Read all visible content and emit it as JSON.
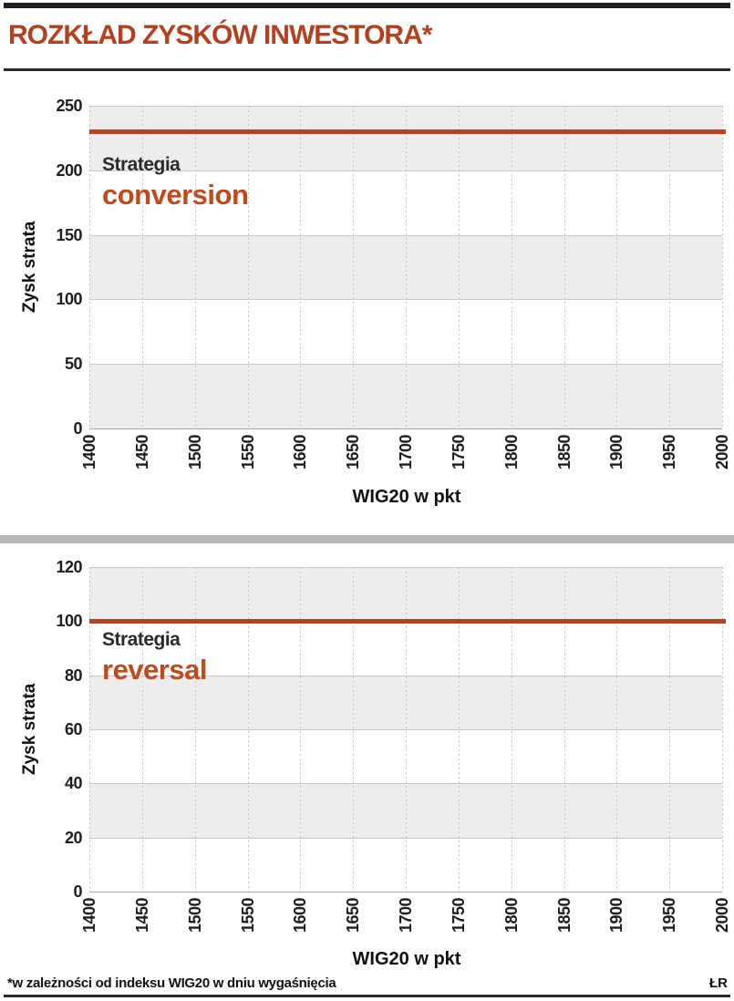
{
  "header": {
    "title": "ROZKŁAD ZYSKÓW INWESTORA*"
  },
  "footer": {
    "note": "*w zależności od indeksu WIG20 w dniu wygaśnięcia",
    "credit": "ŁR"
  },
  "colors": {
    "accent_title": "#b4401e",
    "strategy_name": "#c04a1c",
    "profit_line": "#b54423",
    "band_gray": "#ededed",
    "divider_gray": "#b9b9b9",
    "bar_dark": "#1f1f1f"
  },
  "chart_data": [
    {
      "type": "line",
      "annotation": {
        "prefix": "Strategia",
        "name": "conversion"
      },
      "x": [
        1400,
        1450,
        1500,
        1550,
        1600,
        1650,
        1700,
        1750,
        1800,
        1850,
        1900,
        1950,
        2000
      ],
      "series": [
        {
          "name": "conversion",
          "values": [
            230,
            230,
            230,
            230,
            230,
            230,
            230,
            230,
            230,
            230,
            230,
            230,
            230
          ]
        }
      ],
      "constant": 230,
      "xlabel": "WIG20 w pkt",
      "ylabel": "Zysk strata",
      "xlim": [
        1400,
        2000
      ],
      "ylim": [
        0,
        250
      ],
      "yticks": [
        0,
        50,
        100,
        150,
        200,
        250
      ],
      "grid": true,
      "legend": "none"
    },
    {
      "type": "line",
      "annotation": {
        "prefix": "Strategia",
        "name": "reversal"
      },
      "x": [
        1400,
        1450,
        1500,
        1550,
        1600,
        1650,
        1700,
        1750,
        1800,
        1850,
        1900,
        1950,
        2000
      ],
      "series": [
        {
          "name": "reversal",
          "values": [
            100,
            100,
            100,
            100,
            100,
            100,
            100,
            100,
            100,
            100,
            100,
            100,
            100
          ]
        }
      ],
      "constant": 100,
      "xlabel": "WIG20 w pkt",
      "ylabel": "Zysk strata",
      "xlim": [
        1400,
        2000
      ],
      "ylim": [
        0,
        120
      ],
      "yticks": [
        0,
        20,
        40,
        60,
        80,
        100,
        120
      ],
      "grid": true,
      "legend": "none"
    }
  ]
}
